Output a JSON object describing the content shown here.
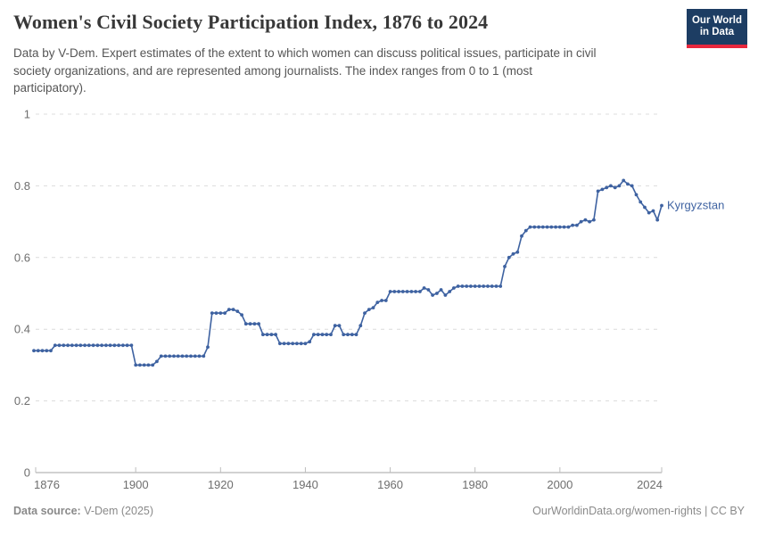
{
  "header": {
    "title": "Women's Civil Society Participation Index, 1876 to 2024",
    "subtitle": "Data by V-Dem. Expert estimates of the extent to which women can discuss political issues, participate in civil society organizations, and are represented among journalists. The index ranges from 0 to 1 (most participatory).",
    "logo": {
      "line1": "Our World",
      "line2": "in Data",
      "bg_color": "#1d3d63",
      "accent_color": "#e8273d"
    }
  },
  "footer": {
    "source_label": "Data source:",
    "source_value": " V-Dem (2025)",
    "link_text": "OurWorldinData.org/women-rights",
    "license": " | CC BY"
  },
  "chart_data": {
    "type": "line",
    "title": "Women's Civil Society Participation Index, 1876 to 2024",
    "xlabel": "",
    "ylabel": "",
    "xlim": [
      1876,
      2024
    ],
    "ylim": [
      0,
      1
    ],
    "x_ticks": [
      1876,
      1900,
      1920,
      1940,
      1960,
      1980,
      2000,
      2024
    ],
    "y_ticks": [
      0,
      0.2,
      0.4,
      0.6,
      0.8,
      1
    ],
    "grid": "horizontal-dashed",
    "legend_position": "end-of-line-label",
    "colors": {
      "line": "#3e62a1",
      "grid": "#dcdcdc",
      "axis": "#a5a5a5",
      "tick_label": "#6e6e6e"
    },
    "series": [
      {
        "name": "Kyrgyzstan",
        "color": "#3e62a1",
        "points": [
          [
            1876,
            0.34
          ],
          [
            1877,
            0.34
          ],
          [
            1878,
            0.34
          ],
          [
            1879,
            0.34
          ],
          [
            1880,
            0.34
          ],
          [
            1881,
            0.355
          ],
          [
            1882,
            0.355
          ],
          [
            1883,
            0.355
          ],
          [
            1884,
            0.355
          ],
          [
            1885,
            0.355
          ],
          [
            1886,
            0.355
          ],
          [
            1887,
            0.355
          ],
          [
            1888,
            0.355
          ],
          [
            1889,
            0.355
          ],
          [
            1890,
            0.355
          ],
          [
            1891,
            0.355
          ],
          [
            1892,
            0.355
          ],
          [
            1893,
            0.355
          ],
          [
            1894,
            0.355
          ],
          [
            1895,
            0.355
          ],
          [
            1896,
            0.355
          ],
          [
            1897,
            0.355
          ],
          [
            1898,
            0.355
          ],
          [
            1899,
            0.355
          ],
          [
            1900,
            0.3
          ],
          [
            1901,
            0.3
          ],
          [
            1902,
            0.3
          ],
          [
            1903,
            0.3
          ],
          [
            1904,
            0.3
          ],
          [
            1905,
            0.31
          ],
          [
            1906,
            0.325
          ],
          [
            1907,
            0.325
          ],
          [
            1908,
            0.325
          ],
          [
            1909,
            0.325
          ],
          [
            1910,
            0.325
          ],
          [
            1911,
            0.325
          ],
          [
            1912,
            0.325
          ],
          [
            1913,
            0.325
          ],
          [
            1914,
            0.325
          ],
          [
            1915,
            0.325
          ],
          [
            1916,
            0.325
          ],
          [
            1917,
            0.35
          ],
          [
            1918,
            0.445
          ],
          [
            1919,
            0.445
          ],
          [
            1920,
            0.445
          ],
          [
            1921,
            0.445
          ],
          [
            1922,
            0.455
          ],
          [
            1923,
            0.455
          ],
          [
            1924,
            0.45
          ],
          [
            1925,
            0.44
          ],
          [
            1926,
            0.415
          ],
          [
            1927,
            0.415
          ],
          [
            1928,
            0.415
          ],
          [
            1929,
            0.415
          ],
          [
            1930,
            0.385
          ],
          [
            1931,
            0.385
          ],
          [
            1932,
            0.385
          ],
          [
            1933,
            0.385
          ],
          [
            1934,
            0.36
          ],
          [
            1935,
            0.36
          ],
          [
            1936,
            0.36
          ],
          [
            1937,
            0.36
          ],
          [
            1938,
            0.36
          ],
          [
            1939,
            0.36
          ],
          [
            1940,
            0.36
          ],
          [
            1941,
            0.365
          ],
          [
            1942,
            0.385
          ],
          [
            1943,
            0.385
          ],
          [
            1944,
            0.385
          ],
          [
            1945,
            0.385
          ],
          [
            1946,
            0.385
          ],
          [
            1947,
            0.41
          ],
          [
            1948,
            0.41
          ],
          [
            1949,
            0.385
          ],
          [
            1950,
            0.385
          ],
          [
            1951,
            0.385
          ],
          [
            1952,
            0.385
          ],
          [
            1953,
            0.41
          ],
          [
            1954,
            0.445
          ],
          [
            1955,
            0.455
          ],
          [
            1956,
            0.46
          ],
          [
            1957,
            0.475
          ],
          [
            1958,
            0.48
          ],
          [
            1959,
            0.48
          ],
          [
            1960,
            0.505
          ],
          [
            1961,
            0.505
          ],
          [
            1962,
            0.505
          ],
          [
            1963,
            0.505
          ],
          [
            1964,
            0.505
          ],
          [
            1965,
            0.505
          ],
          [
            1966,
            0.505
          ],
          [
            1967,
            0.505
          ],
          [
            1968,
            0.515
          ],
          [
            1969,
            0.51
          ],
          [
            1970,
            0.495
          ],
          [
            1971,
            0.5
          ],
          [
            1972,
            0.51
          ],
          [
            1973,
            0.495
          ],
          [
            1974,
            0.505
          ],
          [
            1975,
            0.515
          ],
          [
            1976,
            0.52
          ],
          [
            1977,
            0.52
          ],
          [
            1978,
            0.52
          ],
          [
            1979,
            0.52
          ],
          [
            1980,
            0.52
          ],
          [
            1981,
            0.52
          ],
          [
            1982,
            0.52
          ],
          [
            1983,
            0.52
          ],
          [
            1984,
            0.52
          ],
          [
            1985,
            0.52
          ],
          [
            1986,
            0.52
          ],
          [
            1987,
            0.575
          ],
          [
            1988,
            0.6
          ],
          [
            1989,
            0.61
          ],
          [
            1990,
            0.615
          ],
          [
            1991,
            0.66
          ],
          [
            1992,
            0.675
          ],
          [
            1993,
            0.685
          ],
          [
            1994,
            0.685
          ],
          [
            1995,
            0.685
          ],
          [
            1996,
            0.685
          ],
          [
            1997,
            0.685
          ],
          [
            1998,
            0.685
          ],
          [
            1999,
            0.685
          ],
          [
            2000,
            0.685
          ],
          [
            2001,
            0.685
          ],
          [
            2002,
            0.685
          ],
          [
            2003,
            0.69
          ],
          [
            2004,
            0.69
          ],
          [
            2005,
            0.7
          ],
          [
            2006,
            0.705
          ],
          [
            2007,
            0.7
          ],
          [
            2008,
            0.705
          ],
          [
            2009,
            0.785
          ],
          [
            2010,
            0.79
          ],
          [
            2011,
            0.795
          ],
          [
            2012,
            0.8
          ],
          [
            2013,
            0.795
          ],
          [
            2014,
            0.8
          ],
          [
            2015,
            0.815
          ],
          [
            2016,
            0.805
          ],
          [
            2017,
            0.8
          ],
          [
            2018,
            0.775
          ],
          [
            2019,
            0.755
          ],
          [
            2020,
            0.74
          ],
          [
            2021,
            0.725
          ],
          [
            2022,
            0.73
          ],
          [
            2023,
            0.705
          ],
          [
            2024,
            0.745
          ]
        ]
      }
    ]
  }
}
